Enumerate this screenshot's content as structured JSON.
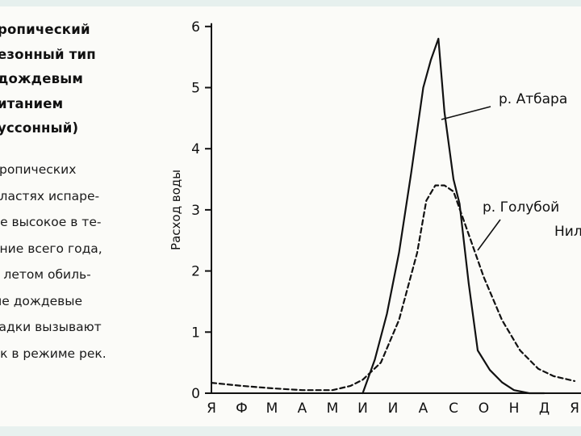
{
  "text": {
    "heading": "ропический\nезонный тип\nдождевым\nитанием\nуссонный)",
    "body": "тропических\nбластях испаре-\nие высокое в те-\nение всего года,\nо летом обиль-\nые дождевые\nсадки вызывают\nик в режиме рек."
  },
  "chart_data": {
    "type": "line",
    "title": "",
    "xlabel": "",
    "ylabel": "Расход воды",
    "ylim": [
      0,
      6
    ],
    "yticks": [
      0,
      1,
      2,
      3,
      4,
      5,
      6
    ],
    "categories": [
      "Я",
      "Ф",
      "М",
      "А",
      "М",
      "И",
      "И",
      "А",
      "С",
      "О",
      "Н",
      "Д",
      "Я"
    ],
    "series": [
      {
        "name": "р. Атбара",
        "style": "solid",
        "x": [
          5,
          5.4,
          5.8,
          6.2,
          6.6,
          7.0,
          7.25,
          7.5,
          7.7,
          8.0,
          8.2,
          8.5,
          8.8,
          9.2,
          9.6,
          10.0,
          10.5,
          11.0
        ],
        "y": [
          0,
          0.55,
          1.3,
          2.3,
          3.6,
          5.0,
          5.45,
          5.8,
          4.6,
          3.5,
          3.1,
          1.8,
          0.7,
          0.38,
          0.18,
          0.05,
          0.0,
          0.0
        ]
      },
      {
        "name": "р. Голубой Нил",
        "style": "dashed",
        "x": [
          0,
          1,
          2,
          3,
          4,
          4.6,
          5,
          5.6,
          6.2,
          6.8,
          7.1,
          7.4,
          7.7,
          8.0,
          8.5,
          9.0,
          9.6,
          10.2,
          10.8,
          11.3,
          12.0
        ],
        "y": [
          0.17,
          0.12,
          0.08,
          0.05,
          0.05,
          0.12,
          0.22,
          0.5,
          1.2,
          2.3,
          3.15,
          3.4,
          3.4,
          3.3,
          2.6,
          1.9,
          1.2,
          0.7,
          0.4,
          0.28,
          0.2
        ]
      }
    ],
    "labels": [
      {
        "text": "р. Атбара",
        "series": 0
      },
      {
        "text": "р. Голубой",
        "series": 1
      },
      {
        "text": "Нил",
        "series": 1
      }
    ],
    "grid": false,
    "legend": "none"
  }
}
